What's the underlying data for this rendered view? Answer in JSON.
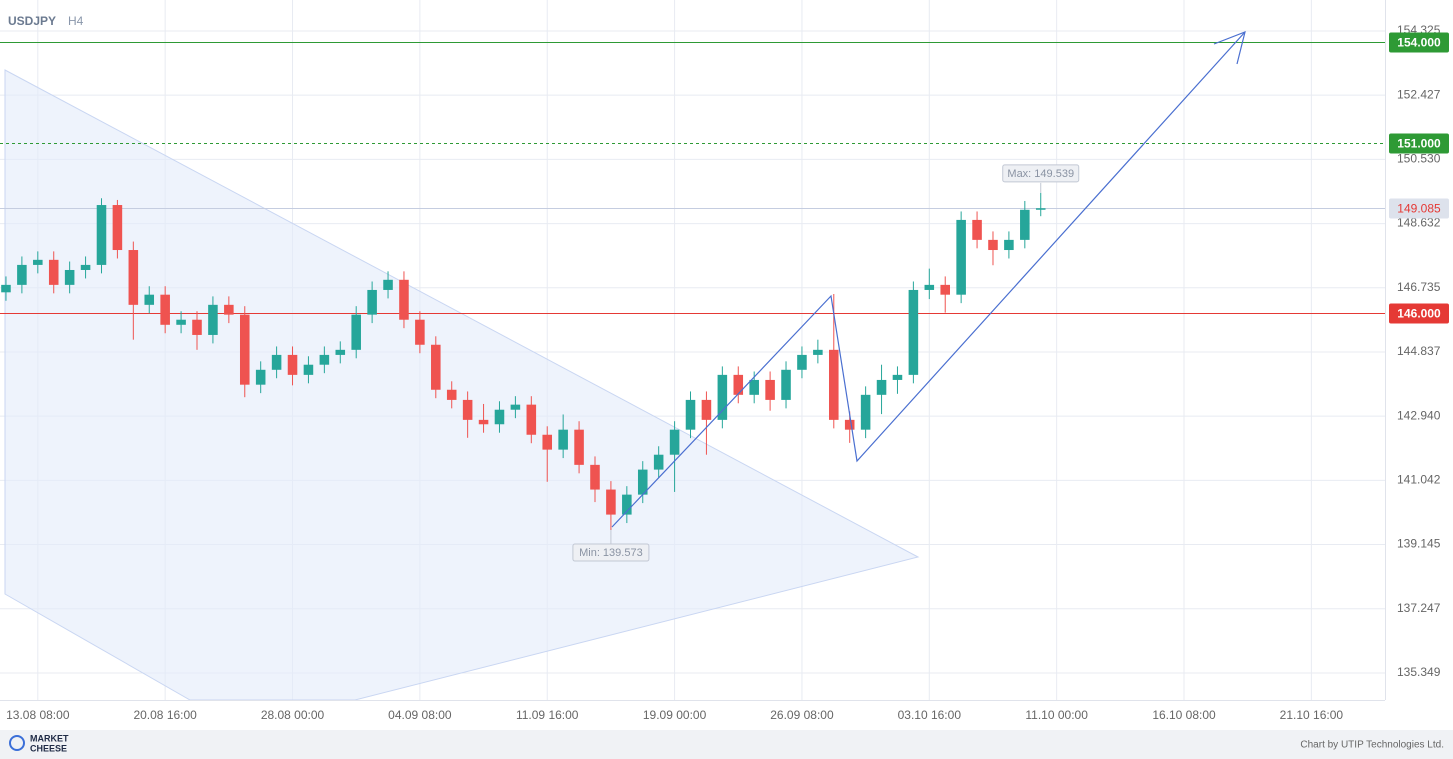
{
  "header": {
    "symbol": "USDJPY",
    "timeframe": "H4"
  },
  "chart_data": {
    "type": "candlestick",
    "xlim": [
      -0.375,
      86.625
    ],
    "xticks": [
      {
        "value": 2,
        "label": "13.08 08:00"
      },
      {
        "value": 10,
        "label": "20.08 16:00"
      },
      {
        "value": 18,
        "label": "28.08 00:00"
      },
      {
        "value": 26,
        "label": "04.09 08:00"
      },
      {
        "value": 34,
        "label": "11.09 16:00"
      },
      {
        "value": 42,
        "label": "19.09 00:00"
      },
      {
        "value": 50,
        "label": "26.09 08:00"
      },
      {
        "value": 58,
        "label": "03.10 16:00"
      },
      {
        "value": 66,
        "label": "11.10 00:00"
      },
      {
        "value": 74,
        "label": "16.10 08:00"
      },
      {
        "value": 82,
        "label": "21.10 16:00"
      }
    ],
    "ylim": [
      134.55,
      155.24
    ],
    "yticks": [
      154.325,
      152.427,
      {
        "value": 150.53,
        "label": "150.530"
      },
      148.632,
      146.735,
      144.837,
      {
        "value": 142.94,
        "label": "142.940"
      },
      141.042,
      139.145,
      137.247,
      135.349
    ],
    "grid": true,
    "up_color": "#26a69a",
    "down_color": "#ef5350",
    "open": [
      146.6,
      146.82,
      147.41,
      147.56,
      146.82,
      147.26,
      147.41,
      149.18,
      147.85,
      146.23,
      146.53,
      145.64,
      145.79,
      145.34,
      146.23,
      145.94,
      143.87,
      144.31,
      144.75,
      144.16,
      144.46,
      144.75,
      144.9,
      145.94,
      146.67,
      146.97,
      145.79,
      145.05,
      143.72,
      143.42,
      142.83,
      142.7,
      143.13,
      143.28,
      142.39,
      141.95,
      142.54,
      141.5,
      140.77,
      140.03,
      140.62,
      141.36,
      141.8,
      142.54,
      143.42,
      142.83,
      144.16,
      143.57,
      144.01,
      143.42,
      144.31,
      144.75,
      144.9,
      142.83,
      142.54,
      143.57,
      144.01,
      144.16,
      146.67,
      146.82,
      146.53,
      148.74,
      148.15,
      147.85,
      148.15,
      149.04
    ],
    "high": [
      147.07,
      147.66,
      147.81,
      147.81,
      147.51,
      147.66,
      149.38,
      149.33,
      148.1,
      146.78,
      146.78,
      146.04,
      146.04,
      146.48,
      146.48,
      146.19,
      144.56,
      145.0,
      145.0,
      144.71,
      145.0,
      145.15,
      146.19,
      146.92,
      147.22,
      147.22,
      146.04,
      145.3,
      143.97,
      143.67,
      143.3,
      143.38,
      143.53,
      143.53,
      142.64,
      142.99,
      142.79,
      141.75,
      141.02,
      140.87,
      141.61,
      142.05,
      142.79,
      143.67,
      143.67,
      144.41,
      144.41,
      144.26,
      144.26,
      144.56,
      145.0,
      145.2,
      146.55,
      143.08,
      143.82,
      144.46,
      144.41,
      146.92,
      147.3,
      147.07,
      148.99,
      148.99,
      148.4,
      148.4,
      149.3,
      149.539
    ],
    "low": [
      146.35,
      146.57,
      147.16,
      146.57,
      146.57,
      147.01,
      147.16,
      147.6,
      145.2,
      145.98,
      145.39,
      145.39,
      144.9,
      145.09,
      145.69,
      143.5,
      143.62,
      144.06,
      143.85,
      143.91,
      144.21,
      144.5,
      144.65,
      145.69,
      146.42,
      145.54,
      144.8,
      143.47,
      143.17,
      142.3,
      142.45,
      142.45,
      142.88,
      142.14,
      141.0,
      141.7,
      141.25,
      140.4,
      139.573,
      139.78,
      140.37,
      141.11,
      140.7,
      142.29,
      141.8,
      142.58,
      143.32,
      143.32,
      143.1,
      143.17,
      144.06,
      144.5,
      142.58,
      142.15,
      142.29,
      143.0,
      143.6,
      143.91,
      146.4,
      146.0,
      146.28,
      147.9,
      147.4,
      147.6,
      147.9,
      148.85
    ],
    "close": [
      146.82,
      147.41,
      147.56,
      146.82,
      147.26,
      147.41,
      149.18,
      147.85,
      146.23,
      146.53,
      145.64,
      145.79,
      145.34,
      146.23,
      145.94,
      143.87,
      144.31,
      144.75,
      144.16,
      144.46,
      144.75,
      144.9,
      145.94,
      146.67,
      146.97,
      145.79,
      145.05,
      143.72,
      143.42,
      142.83,
      142.7,
      143.13,
      143.28,
      142.39,
      141.95,
      142.54,
      141.5,
      140.77,
      140.03,
      140.62,
      141.36,
      141.8,
      142.54,
      143.42,
      142.83,
      144.16,
      143.57,
      144.01,
      143.42,
      144.31,
      144.75,
      144.9,
      142.83,
      142.54,
      143.57,
      144.01,
      144.16,
      146.67,
      146.82,
      146.53,
      148.74,
      148.15,
      147.85,
      148.15,
      149.04,
      149.085
    ],
    "levels": [
      {
        "value": 154,
        "label": "154.000",
        "color": "#2e9a35",
        "style": "solid"
      },
      {
        "value": 151,
        "label": "151.000",
        "color": "#2e9a35",
        "style": "dashed"
      },
      {
        "value": 146,
        "label": "146.000",
        "color": "#e53935",
        "style": "solid"
      }
    ],
    "last_price": 149.085,
    "annotations": [
      {
        "label": "Max: 149.539",
        "value": 149.539
      },
      {
        "label": "Min: 139.573",
        "value": 139.573
      }
    ]
  },
  "footer": {
    "brand": [
      "MARKET",
      "CHEESE"
    ],
    "credit": "Chart by UTIP Technologies Ltd."
  }
}
